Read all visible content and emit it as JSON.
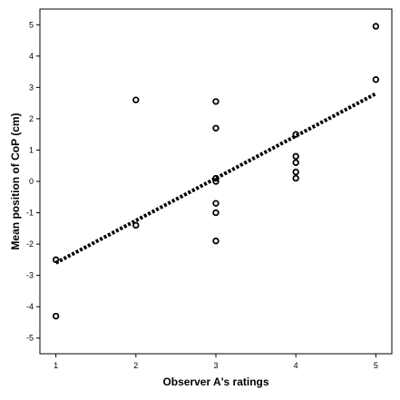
{
  "chart_data": {
    "type": "scatter",
    "title": "",
    "xlabel": "Observer A's ratings",
    "ylabel": "Mean position of CoP (cm)",
    "xlim": [
      0.8,
      5.2
    ],
    "ylim": [
      -5.5,
      5.5
    ],
    "x_ticks": [
      1,
      2,
      3,
      4,
      5
    ],
    "y_ticks": [
      -5,
      -4,
      -3,
      -2,
      -1,
      0,
      1,
      2,
      3,
      4,
      5
    ],
    "grid": false,
    "legend": "none",
    "series": [
      {
        "marker": "open-circle",
        "points": [
          {
            "x": 1,
            "y": -2.5
          },
          {
            "x": 1,
            "y": -4.3
          },
          {
            "x": 2,
            "y": 2.6
          },
          {
            "x": 2,
            "y": -1.4
          },
          {
            "x": 3,
            "y": 2.55
          },
          {
            "x": 3,
            "y": 1.7
          },
          {
            "x": 3,
            "y": 0.1
          },
          {
            "x": 3,
            "y": 0.0
          },
          {
            "x": 3,
            "y": -0.7
          },
          {
            "x": 3,
            "y": -1.0
          },
          {
            "x": 3,
            "y": -1.9
          },
          {
            "x": 4,
            "y": 1.5
          },
          {
            "x": 4,
            "y": 0.8
          },
          {
            "x": 4,
            "y": 0.6
          },
          {
            "x": 4,
            "y": 0.3
          },
          {
            "x": 4,
            "y": 0.1
          },
          {
            "x": 5,
            "y": 4.95
          },
          {
            "x": 5,
            "y": 3.25
          }
        ]
      }
    ],
    "trendline": {
      "style": "dotted",
      "from": {
        "x": 1,
        "y": -2.6
      },
      "to": {
        "x": 5,
        "y": 2.8
      }
    },
    "colors": {
      "marks": "#000000",
      "axes": "#000000",
      "background": "#ffffff"
    }
  }
}
